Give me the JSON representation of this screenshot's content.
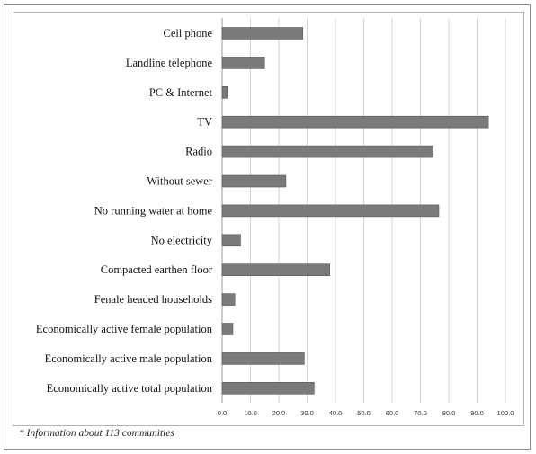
{
  "chart_data": {
    "type": "bar",
    "orientation": "horizontal",
    "categories": [
      "Cell phone",
      "Landline telephone",
      "PC & Internet",
      "TV",
      "Radio",
      "Without sewer",
      "No running water at home",
      "No electricity",
      "Compacted earthen floor",
      "Fenale headed households",
      "Economically active female population",
      "Economically active male population",
      "Economically active total population"
    ],
    "values": [
      28.5,
      15.0,
      1.8,
      94.0,
      74.5,
      22.5,
      76.5,
      6.5,
      38.0,
      4.5,
      3.8,
      29.0,
      32.5
    ],
    "xlim": [
      0,
      100
    ],
    "xticks": [
      "0.0",
      "10.0",
      "20.0",
      "30.0",
      "40.0",
      "50.0",
      "60.0",
      "70.0",
      "80.0",
      "90.0",
      "100.0"
    ],
    "grid": "vertical",
    "bar_color": "#7a7a7a",
    "title": "",
    "xlabel": "",
    "ylabel": ""
  },
  "footnote": "* Information about 113 communities"
}
